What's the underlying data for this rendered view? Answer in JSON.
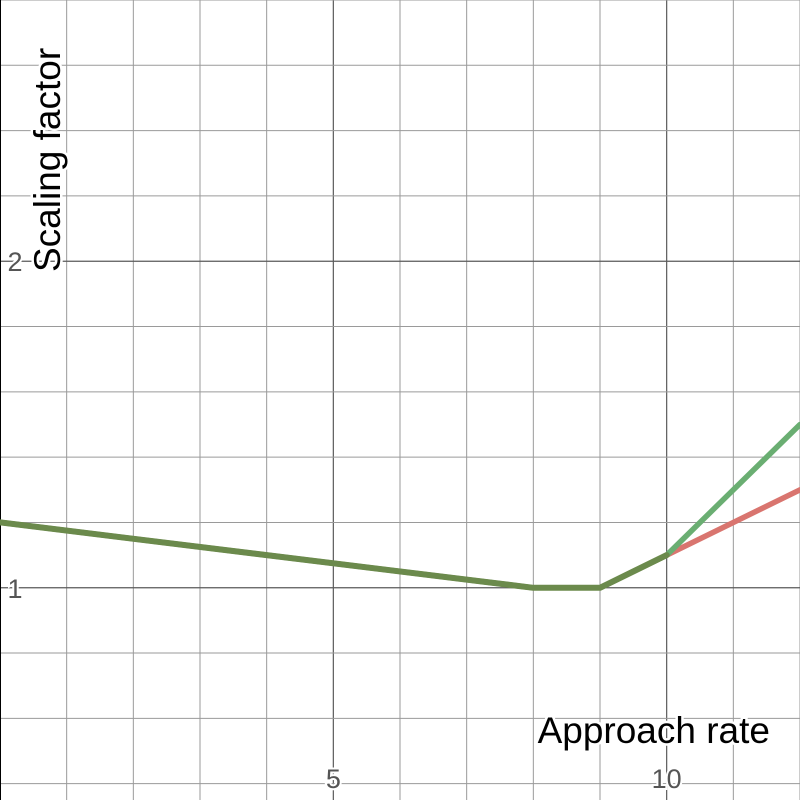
{
  "chart_data": {
    "type": "line",
    "xlabel": "Approach rate",
    "ylabel": "Scaling factor",
    "xlim": [
      0,
      12
    ],
    "ylim": [
      0.35,
      2.8
    ],
    "grid": true,
    "x_ticks": [
      5,
      10
    ],
    "y_ticks": [
      1,
      2
    ],
    "x_ticks_labels": [
      "5",
      "10"
    ],
    "y_ticks_labels": [
      "1",
      "2"
    ],
    "series": [
      {
        "color": "#d9756f",
        "x": [
          0,
          8,
          9,
          10,
          12
        ],
        "y": [
          1.2,
          1.0,
          1.0,
          1.1,
          1.3
        ]
      },
      {
        "color": "#6aae72",
        "x": [
          0,
          8,
          9,
          10,
          12
        ],
        "y": [
          1.2,
          1.0,
          1.0,
          1.1,
          1.5
        ]
      }
    ],
    "overlap_color": "#6b8a4c"
  }
}
